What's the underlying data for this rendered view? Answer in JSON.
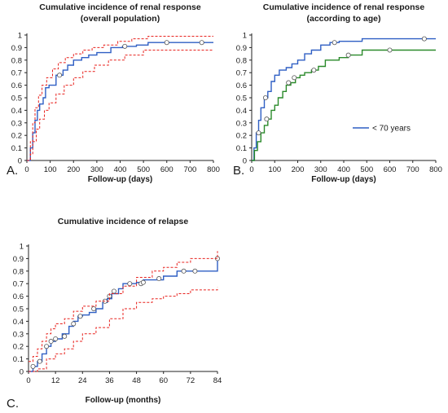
{
  "chart_data": [
    {
      "type": "line",
      "panel": "A.",
      "title": [
        "Cumulative incidence of renal response",
        "(overall population)"
      ],
      "xlabel": "Follow-up (days)",
      "ylabel": "",
      "xlim": [
        0,
        800
      ],
      "ylim": [
        0,
        1
      ],
      "x_ticks": [
        "0",
        "100",
        "200",
        "300",
        "400",
        "500",
        "600",
        "700",
        "800"
      ],
      "y_ticks": [
        "0",
        "0.1",
        "0.2",
        "0.3",
        "0.4",
        "0.5",
        "0.6",
        "0.7",
        "0.8",
        "0.9",
        "1"
      ],
      "colors": {
        "main": "#2f5fc4",
        "ci": "#e8231f"
      },
      "series": [
        {
          "role": "estimate",
          "color": "#2f5fc4",
          "dash": false,
          "step": true,
          "x": [
            0,
            15,
            25,
            35,
            45,
            55,
            70,
            80,
            95,
            125,
            155,
            175,
            200,
            235,
            265,
            300,
            360,
            410,
            470,
            520,
            800
          ],
          "y": [
            0,
            0.1,
            0.22,
            0.32,
            0.4,
            0.45,
            0.5,
            0.58,
            0.6,
            0.68,
            0.72,
            0.76,
            0.8,
            0.82,
            0.84,
            0.86,
            0.9,
            0.91,
            0.92,
            0.94,
            0.94
          ],
          "censor": [
            [
              140,
              0.68
            ],
            [
              420,
              0.91
            ],
            [
              600,
              0.94
            ],
            [
              750,
              0.94
            ]
          ]
        },
        {
          "role": "upper",
          "color": "#e8231f",
          "dash": true,
          "step": true,
          "x": [
            0,
            15,
            25,
            35,
            50,
            65,
            85,
            110,
            135,
            165,
            200,
            240,
            280,
            330,
            390,
            450,
            520,
            800
          ],
          "y": [
            0,
            0.15,
            0.3,
            0.42,
            0.52,
            0.6,
            0.66,
            0.73,
            0.78,
            0.82,
            0.85,
            0.88,
            0.9,
            0.92,
            0.95,
            0.97,
            0.99,
            0.99
          ]
        },
        {
          "role": "lower",
          "color": "#e8231f",
          "dash": true,
          "step": true,
          "x": [
            0,
            15,
            25,
            40,
            55,
            75,
            95,
            125,
            160,
            200,
            240,
            290,
            350,
            420,
            500,
            800
          ],
          "y": [
            0,
            0.05,
            0.15,
            0.25,
            0.33,
            0.4,
            0.46,
            0.53,
            0.6,
            0.66,
            0.71,
            0.76,
            0.8,
            0.84,
            0.88,
            0.88
          ]
        }
      ]
    },
    {
      "type": "line",
      "panel": "B.",
      "title": [
        "Cumulative incidence of renal response",
        "(according to age)"
      ],
      "xlabel": "Follow-up (days)",
      "ylabel": "",
      "xlim": [
        0,
        800
      ],
      "ylim": [
        0,
        1
      ],
      "x_ticks": [
        "0",
        "100",
        "200",
        "300",
        "400",
        "500",
        "600",
        "700",
        "800"
      ],
      "y_ticks": [
        "0",
        "0.1",
        "0.2",
        "0.3",
        "0.4",
        "0.5",
        "0.6",
        "0.7",
        "0.8",
        "0.9",
        "1"
      ],
      "legend": {
        "placement": "right",
        "entries": [
          {
            "label": "< 70 years",
            "color": "#2f5fc4"
          }
        ]
      },
      "series": [
        {
          "name": "< 70 years",
          "color": "#2f5fc4",
          "dash": false,
          "step": true,
          "x": [
            0,
            10,
            20,
            30,
            40,
            55,
            70,
            85,
            100,
            120,
            150,
            175,
            200,
            230,
            260,
            300,
            340,
            380,
            480,
            800
          ],
          "y": [
            0,
            0.1,
            0.22,
            0.32,
            0.42,
            0.5,
            0.55,
            0.63,
            0.68,
            0.72,
            0.74,
            0.77,
            0.8,
            0.85,
            0.88,
            0.92,
            0.94,
            0.95,
            0.97,
            0.97
          ],
          "censor": [
            [
              60,
              0.5
            ],
            [
              360,
              0.94
            ],
            [
              750,
              0.97
            ]
          ]
        },
        {
          "color": "#2a8a2a",
          "dash": false,
          "step": true,
          "x": [
            0,
            12,
            25,
            40,
            55,
            70,
            85,
            100,
            115,
            135,
            150,
            170,
            190,
            210,
            230,
            260,
            290,
            320,
            380,
            420,
            480,
            800
          ],
          "y": [
            0,
            0.08,
            0.15,
            0.22,
            0.28,
            0.33,
            0.4,
            0.44,
            0.5,
            0.55,
            0.6,
            0.62,
            0.66,
            0.68,
            0.7,
            0.72,
            0.75,
            0.8,
            0.82,
            0.84,
            0.88,
            0.88
          ],
          "censor": [
            [
              30,
              0.22
            ],
            [
              65,
              0.33
            ],
            [
              160,
              0.62
            ],
            [
              185,
              0.66
            ],
            [
              270,
              0.72
            ],
            [
              420,
              0.84
            ],
            [
              600,
              0.88
            ]
          ]
        }
      ]
    },
    {
      "type": "line",
      "panel": "C.",
      "title": [
        "Cumulative incidence of relapse"
      ],
      "xlabel": "Follow-up (months)",
      "ylabel": "",
      "xlim": [
        0,
        84
      ],
      "ylim": [
        0,
        1
      ],
      "x_ticks": [
        "0",
        "12",
        "24",
        "36",
        "48",
        "60",
        "72",
        "84"
      ],
      "y_ticks": [
        "0",
        "0.1",
        "0.2",
        "0.3",
        "0.4",
        "0.5",
        "0.6",
        "0.7",
        "0.8",
        "0.9",
        "1"
      ],
      "series": [
        {
          "role": "estimate",
          "color": "#2f5fc4",
          "dash": false,
          "step": true,
          "x": [
            0,
            2,
            4,
            6,
            8,
            10,
            12,
            15,
            18,
            20,
            22,
            24,
            27,
            30,
            33,
            35,
            37,
            40,
            42,
            48,
            51,
            60,
            66,
            84
          ],
          "y": [
            0,
            0.04,
            0.08,
            0.14,
            0.2,
            0.24,
            0.26,
            0.3,
            0.36,
            0.4,
            0.44,
            0.45,
            0.47,
            0.5,
            0.55,
            0.58,
            0.62,
            0.66,
            0.7,
            0.71,
            0.73,
            0.76,
            0.8,
            0.9
          ],
          "censor": [
            [
              2,
              0.04
            ],
            [
              5,
              0.08
            ],
            [
              8,
              0.2
            ],
            [
              10,
              0.24
            ],
            [
              12,
              0.26
            ],
            [
              16,
              0.28
            ],
            [
              20,
              0.38
            ],
            [
              23,
              0.44
            ],
            [
              29,
              0.5
            ],
            [
              34,
              0.56
            ],
            [
              36,
              0.6
            ],
            [
              38,
              0.64
            ],
            [
              45,
              0.7
            ],
            [
              50,
              0.7
            ],
            [
              51,
              0.71
            ],
            [
              58,
              0.74
            ],
            [
              69,
              0.8
            ],
            [
              74,
              0.8
            ],
            [
              84,
              0.9
            ]
          ]
        },
        {
          "role": "upper",
          "color": "#e8231f",
          "dash": true,
          "step": true,
          "x": [
            0,
            2,
            4,
            6,
            8,
            10,
            12,
            16,
            20,
            24,
            30,
            36,
            42,
            48,
            55,
            60,
            66,
            72,
            84
          ],
          "y": [
            0.08,
            0.12,
            0.18,
            0.24,
            0.3,
            0.34,
            0.38,
            0.42,
            0.48,
            0.52,
            0.56,
            0.62,
            0.68,
            0.75,
            0.8,
            0.83,
            0.87,
            0.9,
            0.96
          ]
        },
        {
          "role": "lower",
          "color": "#e8231f",
          "dash": true,
          "step": true,
          "x": [
            0,
            4,
            8,
            12,
            16,
            20,
            24,
            30,
            36,
            42,
            48,
            55,
            60,
            66,
            72,
            84
          ],
          "y": [
            0,
            0.02,
            0.1,
            0.14,
            0.18,
            0.24,
            0.3,
            0.35,
            0.42,
            0.5,
            0.55,
            0.58,
            0.6,
            0.62,
            0.65,
            0.67
          ]
        }
      ]
    }
  ]
}
